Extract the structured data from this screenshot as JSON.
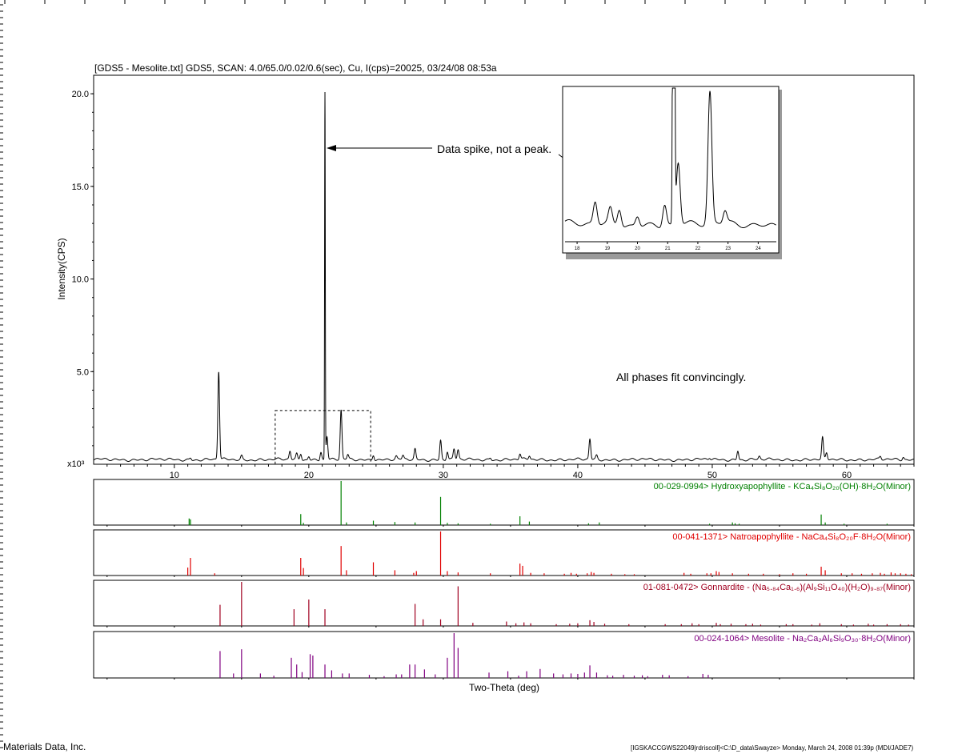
{
  "header": {
    "text": "[GDS5 - Mesolite.txt] GDS5, SCAN: 4.0/65.0/0.02/0.6(sec), Cu, I(cps)=20025, 03/24/08 08:53a"
  },
  "footer": {
    "company": "Materials Data, Inc.",
    "session": "[IGSKACCGWS22049|rdriscoll]<C:\\D_data\\Swayze> Monday, March 24, 2008 01:39p (MDI/JADE7)"
  },
  "annotations": {
    "spike_note": "Data spike, not a peak.",
    "fit_note": "All phases fit convincingly."
  },
  "chart_data": {
    "type": "line",
    "xlabel": "Two-Theta (deg)",
    "ylabel": "Intensity(CPS)",
    "y_multiplier_label": "x10³",
    "xlim": [
      4,
      65
    ],
    "ylim": [
      0,
      21
    ],
    "xticks": [
      10,
      20,
      30,
      40,
      50,
      60
    ],
    "yticks": [
      5.0,
      10.0,
      15.0,
      20.0
    ],
    "yticklabels": [
      "5.0",
      "10.0",
      "15.0",
      "20.0"
    ],
    "baseline": 0.25,
    "peaks": [
      {
        "x": 11.2,
        "y": 0.35
      },
      {
        "x": 13.3,
        "y": 5.0
      },
      {
        "x": 15.0,
        "y": 0.45
      },
      {
        "x": 18.6,
        "y": 0.7
      },
      {
        "x": 19.1,
        "y": 0.55
      },
      {
        "x": 19.4,
        "y": 0.6
      },
      {
        "x": 20.0,
        "y": 0.45
      },
      {
        "x": 20.9,
        "y": 0.7
      },
      {
        "x": 21.2,
        "y": 20.0
      },
      {
        "x": 21.35,
        "y": 1.5
      },
      {
        "x": 22.4,
        "y": 2.9
      },
      {
        "x": 22.9,
        "y": 0.5
      },
      {
        "x": 24.8,
        "y": 0.55
      },
      {
        "x": 26.5,
        "y": 0.4
      },
      {
        "x": 27.0,
        "y": 0.45
      },
      {
        "x": 27.9,
        "y": 0.8
      },
      {
        "x": 29.8,
        "y": 1.3
      },
      {
        "x": 30.3,
        "y": 0.7
      },
      {
        "x": 30.8,
        "y": 0.8
      },
      {
        "x": 31.1,
        "y": 0.75
      },
      {
        "x": 33.5,
        "y": 0.35
      },
      {
        "x": 35.7,
        "y": 0.55
      },
      {
        "x": 36.4,
        "y": 0.45
      },
      {
        "x": 40.9,
        "y": 1.35
      },
      {
        "x": 41.4,
        "y": 0.45
      },
      {
        "x": 49.8,
        "y": 0.35
      },
      {
        "x": 51.9,
        "y": 0.75
      },
      {
        "x": 53.5,
        "y": 0.4
      },
      {
        "x": 58.2,
        "y": 1.4
      },
      {
        "x": 58.5,
        "y": 0.6
      },
      {
        "x": 62.5,
        "y": 0.4
      },
      {
        "x": 64.2,
        "y": 0.4
      }
    ],
    "zoom_box": {
      "x0": 17.5,
      "x1": 24.6,
      "y0": 0,
      "y1": 2.9
    },
    "inset": {
      "xlim": [
        17.6,
        24.6
      ],
      "ylim": [
        0,
        3.0
      ],
      "xticks": [
        18,
        19,
        20,
        21,
        22,
        23,
        24
      ]
    },
    "reference_patterns": [
      {
        "label": "00-029-0994> Hydroxyapophyllite - KCa₄Si₈O₂₀(OH)·8H₂O(Minor)",
        "color": "#008000",
        "sticks": [
          [
            11.1,
            0.15
          ],
          [
            11.2,
            0.13
          ],
          [
            19.4,
            0.25
          ],
          [
            19.6,
            0.05
          ],
          [
            22.4,
            1.0
          ],
          [
            22.8,
            0.06
          ],
          [
            24.8,
            0.1
          ],
          [
            26.4,
            0.07
          ],
          [
            27.9,
            0.06
          ],
          [
            29.8,
            0.64
          ],
          [
            30.3,
            0.05
          ],
          [
            31.1,
            0.04
          ],
          [
            33.5,
            0.03
          ],
          [
            35.7,
            0.2
          ],
          [
            36.4,
            0.08
          ],
          [
            40.8,
            0.04
          ],
          [
            41.6,
            0.06
          ],
          [
            49.8,
            0.03
          ],
          [
            51.5,
            0.06
          ],
          [
            51.7,
            0.04
          ],
          [
            52.0,
            0.03
          ],
          [
            58.1,
            0.24
          ],
          [
            58.4,
            0.06
          ],
          [
            59.8,
            0.03
          ],
          [
            63.0,
            0.03
          ]
        ]
      },
      {
        "label": "00-041-1371> Natroapophyllite - NaCa₄Si₈O₂₀F·8H₂O(Minor)",
        "color": "#e00000",
        "sticks": [
          [
            11.0,
            0.18
          ],
          [
            11.2,
            0.4
          ],
          [
            13.0,
            0.05
          ],
          [
            19.4,
            0.4
          ],
          [
            19.6,
            0.17
          ],
          [
            22.4,
            0.67
          ],
          [
            22.8,
            0.12
          ],
          [
            24.8,
            0.3
          ],
          [
            26.4,
            0.12
          ],
          [
            27.8,
            0.06
          ],
          [
            28.0,
            0.1
          ],
          [
            29.8,
            1.0
          ],
          [
            30.3,
            0.1
          ],
          [
            31.1,
            0.07
          ],
          [
            33.5,
            0.05
          ],
          [
            35.7,
            0.27
          ],
          [
            35.9,
            0.22
          ],
          [
            36.5,
            0.06
          ],
          [
            37.5,
            0.05
          ],
          [
            39.0,
            0.04
          ],
          [
            39.5,
            0.06
          ],
          [
            39.9,
            0.04
          ],
          [
            40.7,
            0.05
          ],
          [
            41.0,
            0.08
          ],
          [
            41.2,
            0.06
          ],
          [
            42.5,
            0.04
          ],
          [
            43.5,
            0.03
          ],
          [
            44.2,
            0.03
          ],
          [
            47.9,
            0.06
          ],
          [
            48.4,
            0.04
          ],
          [
            49.6,
            0.05
          ],
          [
            49.9,
            0.05
          ],
          [
            50.3,
            0.1
          ],
          [
            50.5,
            0.08
          ],
          [
            51.5,
            0.05
          ],
          [
            52.7,
            0.04
          ],
          [
            53.8,
            0.04
          ],
          [
            55.0,
            0.03
          ],
          [
            56.0,
            0.05
          ],
          [
            57.0,
            0.04
          ],
          [
            58.1,
            0.2
          ],
          [
            58.4,
            0.12
          ],
          [
            59.6,
            0.05
          ],
          [
            60.4,
            0.05
          ],
          [
            61.1,
            0.04
          ],
          [
            61.9,
            0.05
          ],
          [
            62.5,
            0.06
          ],
          [
            62.8,
            0.04
          ],
          [
            63.3,
            0.07
          ],
          [
            63.6,
            0.05
          ],
          [
            64.0,
            0.05
          ],
          [
            64.4,
            0.04
          ],
          [
            64.8,
            0.03
          ]
        ]
      },
      {
        "label": "01-081-0472> Gonnardite - (Na₅.₈₄Ca₁.₆)(Al₉Si₁₁O₄₀)(H₂O)₉.₈₇(Minor)",
        "color": "#a00020",
        "sticks": [
          [
            13.4,
            0.48
          ],
          [
            15.0,
            1.0
          ],
          [
            18.9,
            0.38
          ],
          [
            20.0,
            0.6
          ],
          [
            21.2,
            0.38
          ],
          [
            27.9,
            0.5
          ],
          [
            28.5,
            0.15
          ],
          [
            29.8,
            0.15
          ],
          [
            31.1,
            0.9
          ],
          [
            32.2,
            0.07
          ],
          [
            34.7,
            0.1
          ],
          [
            35.4,
            0.06
          ],
          [
            36.0,
            0.08
          ],
          [
            36.5,
            0.06
          ],
          [
            38.4,
            0.04
          ],
          [
            39.4,
            0.05
          ],
          [
            40.0,
            0.06
          ],
          [
            40.9,
            0.13
          ],
          [
            41.2,
            0.09
          ],
          [
            42.0,
            0.05
          ],
          [
            43.8,
            0.04
          ],
          [
            46.5,
            0.04
          ],
          [
            47.7,
            0.04
          ],
          [
            48.5,
            0.06
          ],
          [
            49.0,
            0.04
          ],
          [
            50.3,
            0.07
          ],
          [
            50.6,
            0.04
          ],
          [
            51.4,
            0.05
          ],
          [
            52.5,
            0.04
          ],
          [
            53.0,
            0.05
          ],
          [
            53.6,
            0.03
          ],
          [
            55.5,
            0.04
          ],
          [
            56.0,
            0.04
          ],
          [
            57.4,
            0.03
          ],
          [
            58.0,
            0.06
          ],
          [
            59.6,
            0.04
          ],
          [
            60.5,
            0.03
          ],
          [
            61.6,
            0.05
          ],
          [
            62.0,
            0.03
          ],
          [
            63.0,
            0.04
          ],
          [
            64.0,
            0.04
          ],
          [
            64.6,
            0.03
          ]
        ]
      },
      {
        "label": "00-024-1064> Mesolite - Na₂Ca₂Al₆Si₉O₃₀·8H₂O(Minor)",
        "color": "#800080",
        "sticks": [
          [
            13.4,
            0.6
          ],
          [
            14.4,
            0.1
          ],
          [
            15.0,
            0.64
          ],
          [
            16.4,
            0.1
          ],
          [
            17.4,
            0.05
          ],
          [
            18.7,
            0.45
          ],
          [
            19.1,
            0.3
          ],
          [
            19.5,
            0.13
          ],
          [
            20.1,
            0.53
          ],
          [
            20.3,
            0.5
          ],
          [
            21.2,
            0.3
          ],
          [
            21.7,
            0.17
          ],
          [
            22.5,
            0.1
          ],
          [
            23.0,
            0.1
          ],
          [
            24.5,
            0.07
          ],
          [
            25.6,
            0.04
          ],
          [
            26.5,
            0.08
          ],
          [
            26.9,
            0.08
          ],
          [
            27.5,
            0.3
          ],
          [
            27.9,
            0.3
          ],
          [
            28.6,
            0.19
          ],
          [
            29.4,
            0.08
          ],
          [
            30.3,
            0.45
          ],
          [
            30.8,
            1.0
          ],
          [
            31.1,
            0.67
          ],
          [
            33.4,
            0.12
          ],
          [
            34.8,
            0.15
          ],
          [
            35.6,
            0.05
          ],
          [
            36.2,
            0.15
          ],
          [
            37.2,
            0.2
          ],
          [
            38.2,
            0.1
          ],
          [
            38.9,
            0.08
          ],
          [
            39.5,
            0.1
          ],
          [
            40.0,
            0.09
          ],
          [
            40.5,
            0.12
          ],
          [
            40.9,
            0.28
          ],
          [
            41.4,
            0.12
          ],
          [
            42.2,
            0.06
          ],
          [
            42.6,
            0.05
          ],
          [
            43.4,
            0.07
          ],
          [
            44.2,
            0.05
          ],
          [
            44.8,
            0.06
          ],
          [
            45.2,
            0.04
          ],
          [
            46.3,
            0.07
          ],
          [
            46.8,
            0.06
          ],
          [
            48.2,
            0.04
          ],
          [
            49.3,
            0.09
          ],
          [
            49.7,
            0.07
          ]
        ]
      }
    ]
  }
}
